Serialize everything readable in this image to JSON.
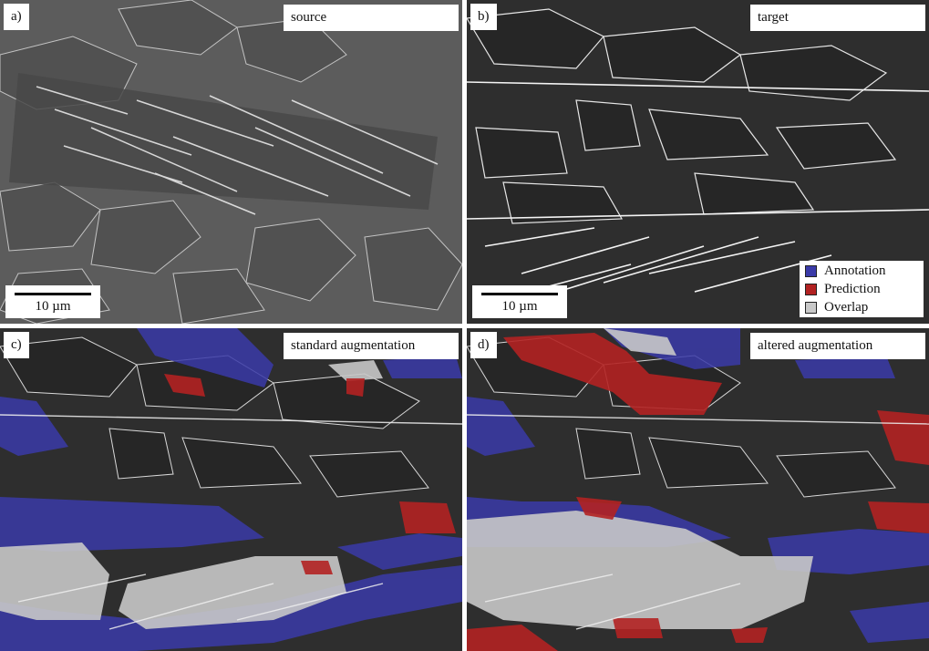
{
  "panels": {
    "a": {
      "letter": "a)",
      "title": "source",
      "scale": "10 µm"
    },
    "b": {
      "letter": "b)",
      "title": "target",
      "scale": "10 µm"
    },
    "c": {
      "letter": "c)",
      "title": "standard augmentation"
    },
    "d": {
      "letter": "d)",
      "title": "altered augmentation"
    }
  },
  "legend": {
    "items": [
      {
        "label": "Annotation",
        "color": "#3a3aa8"
      },
      {
        "label": "Prediction",
        "color": "#b22222"
      },
      {
        "label": "Overlap",
        "color": "#c8c8c8"
      }
    ]
  },
  "colors": {
    "background": "#ffffff",
    "micrograph_light": "#5a5a5a",
    "micrograph_dark": "#2a2a2a",
    "annotation": "#3a3aa8",
    "prediction": "#b22222",
    "overlap": "#c8c8c8"
  }
}
